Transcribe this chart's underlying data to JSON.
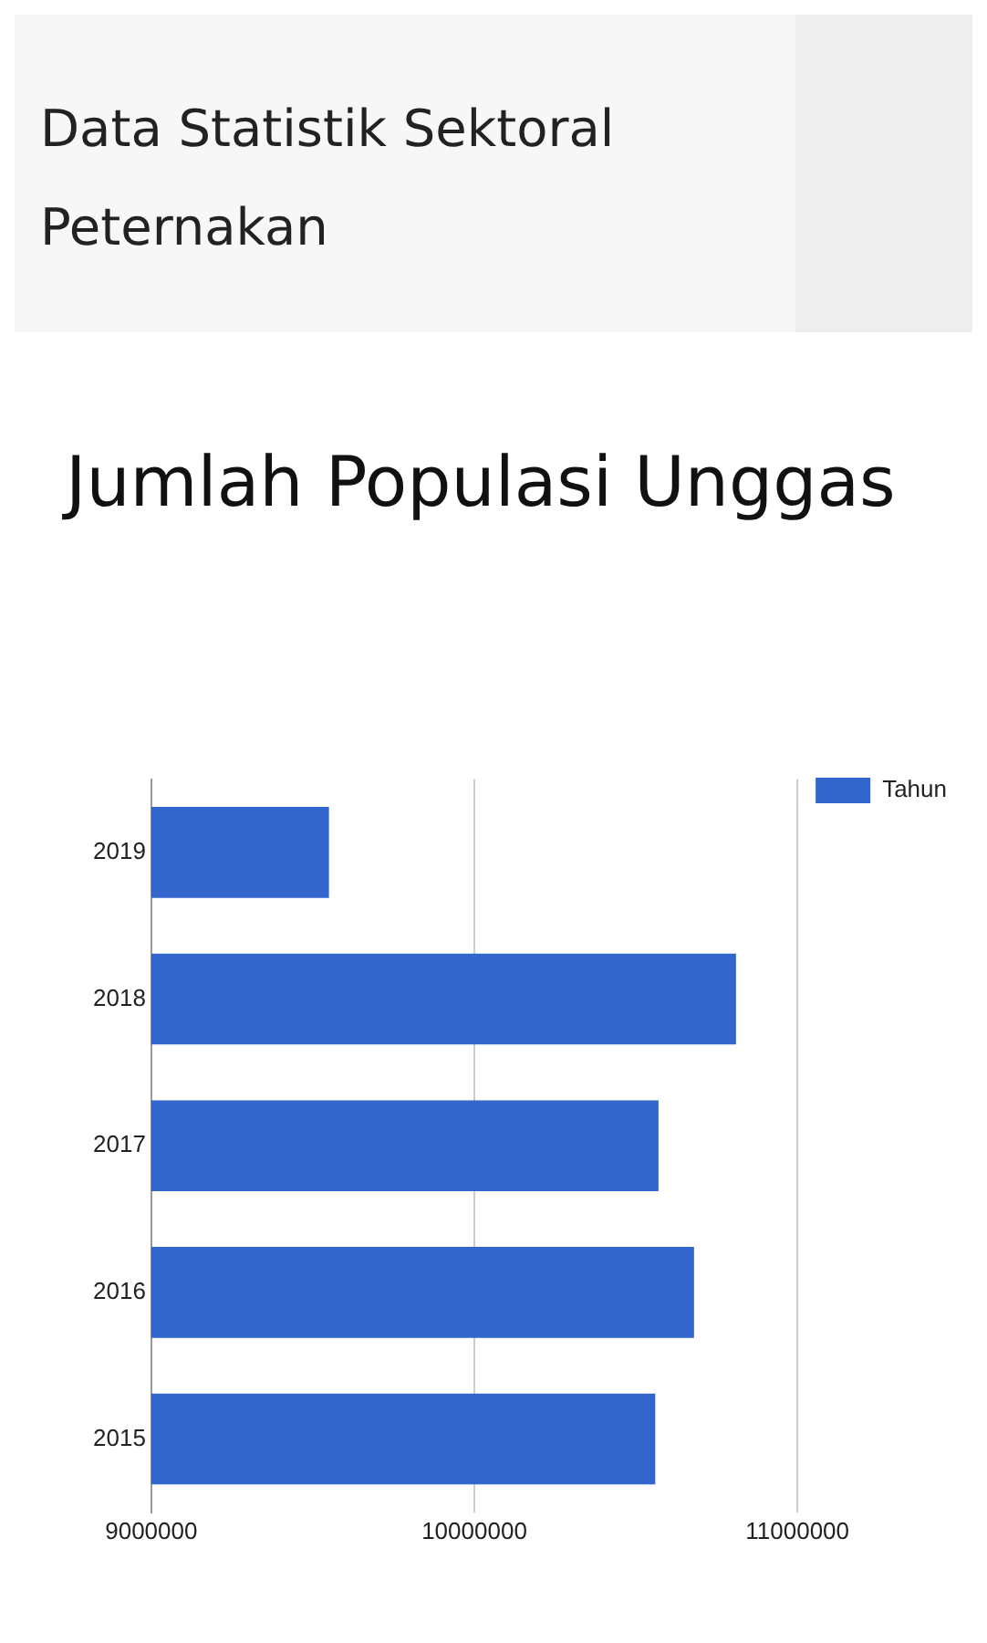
{
  "chart_data": {
    "type": "bar",
    "orientation": "horizontal",
    "title": "Jumlah Populasi Unggas",
    "annotations": [
      "Data Statistik Sektoral Peternakan"
    ],
    "categories": [
      "2019",
      "2018",
      "2017",
      "2016",
      "2015"
    ],
    "series": [
      {
        "name": "Tahun",
        "color": "#3366cc",
        "values": [
          9550000,
          10810000,
          10570000,
          10680000,
          10560000
        ]
      }
    ],
    "xlim": [
      9000000,
      11000000
    ],
    "xticks": [
      9000000,
      10000000,
      11000000
    ],
    "grid": "x",
    "legend": "top right"
  }
}
